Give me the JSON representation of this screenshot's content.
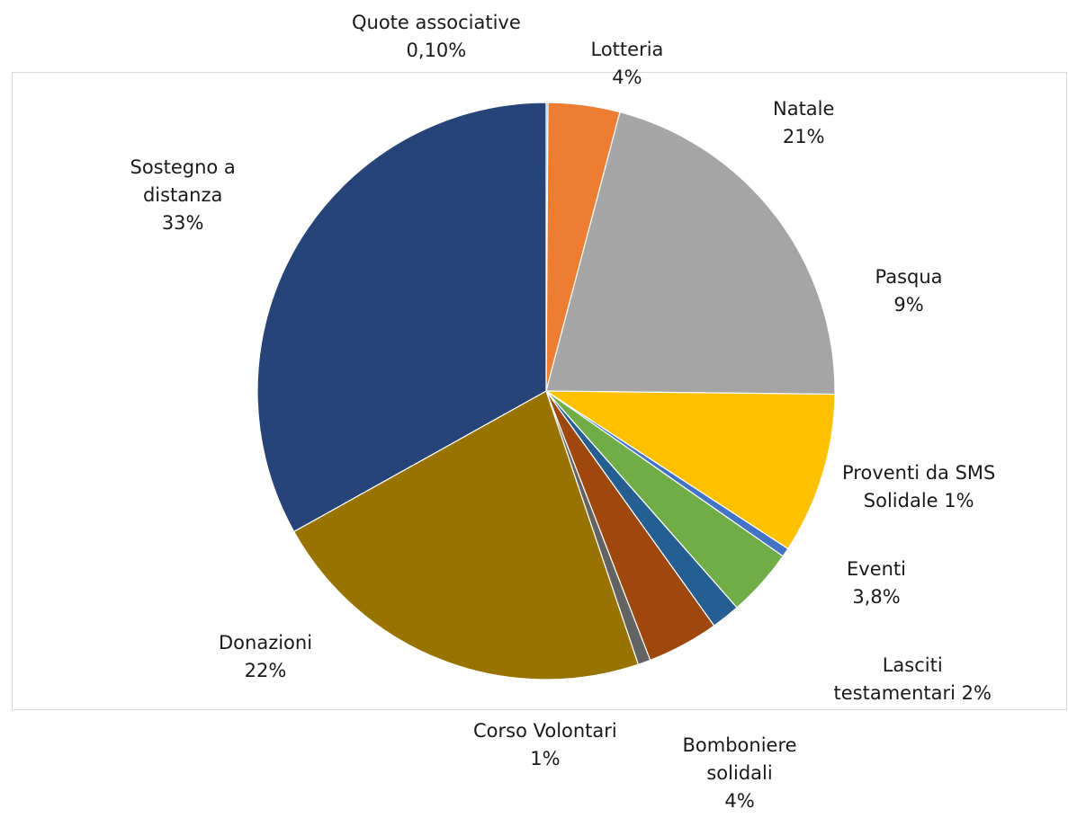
{
  "chart_data": {
    "type": "pie",
    "start_angle_deg": 0,
    "direction": "clockwise",
    "slices": [
      {
        "name": "Quote associative",
        "value": 0.1,
        "label_lines": [
          "Quote associative",
          "0,10%"
        ],
        "color": "#5b9bd5"
      },
      {
        "name": "Lotteria",
        "value": 4,
        "label_lines": [
          "Lotteria",
          "4%"
        ],
        "color": "#ed7d31"
      },
      {
        "name": "Natale",
        "value": 21,
        "label_lines": [
          "Natale",
          "21%"
        ],
        "color": "#a5a5a5"
      },
      {
        "name": "Pasqua",
        "value": 9,
        "label_lines": [
          "Pasqua",
          "9%"
        ],
        "color": "#ffc000"
      },
      {
        "name": "Proventi da SMS Solidale",
        "value": 0.5,
        "label_lines": [
          "Proventi da SMS",
          "Solidale 1%"
        ],
        "color": "#4472c4"
      },
      {
        "name": "Eventi",
        "value": 3.8,
        "label_lines": [
          "Eventi",
          "3,8%"
        ],
        "color": "#70ad47"
      },
      {
        "name": "Lasciti testamentari",
        "value": 1.6,
        "label_lines": [
          "Lasciti",
          "testamentari  2%"
        ],
        "color": "#255e91"
      },
      {
        "name": "Bomboniere solidali",
        "value": 4,
        "label_lines": [
          "Bomboniere",
          "solidali",
          "4%"
        ],
        "color": "#9e480e"
      },
      {
        "name": "Corso Volontari",
        "value": 0.7,
        "label_lines": [
          "Corso Volontari",
          "1%"
        ],
        "color": "#636363"
      },
      {
        "name": "Donazioni",
        "value": 22,
        "label_lines": [
          "Donazioni",
          "22%"
        ],
        "color": "#997300"
      },
      {
        "name": "Sostegno a distanza",
        "value": 33,
        "label_lines": [
          "Sostegno a",
          "distanza",
          "33%"
        ],
        "color": "#264478"
      }
    ]
  }
}
